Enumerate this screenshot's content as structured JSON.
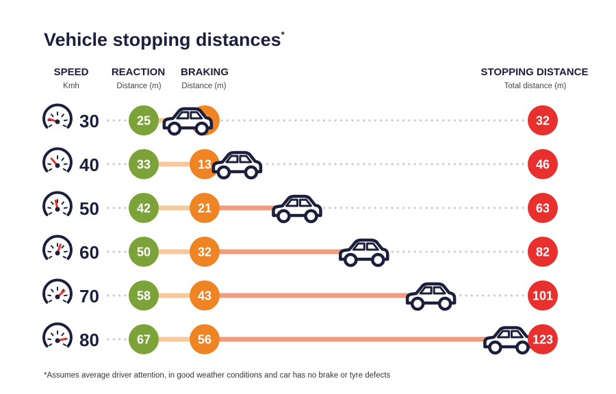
{
  "title": "Vehicle stopping distances",
  "title_mark": "*",
  "headers": {
    "speed": {
      "label": "SPEED",
      "sub": "Kmh"
    },
    "reaction": {
      "label": "REACTION",
      "sub": "Distance (m)"
    },
    "braking": {
      "label": "BRAKING",
      "sub": "Distance (m)"
    },
    "stopping": {
      "label": "STOPPING DISTANCE",
      "sub": "Total distance (m)"
    }
  },
  "footnote": "*Assumes average driver attention, in good weather conditions and car has no brake or tyre defects",
  "colors": {
    "reaction": "#7ba33a",
    "braking": "#ef8424",
    "stopping": "#e8302e",
    "bar_reaction": "#f6c99a",
    "bar_braking": "#f29b7e",
    "dots": "#cccccc",
    "ink": "#1b1f3b",
    "needle": "#e8302e"
  },
  "icons": {
    "gauge": "speedometer-icon",
    "car": "car-icon"
  },
  "chart_data": {
    "type": "bar",
    "categories": [
      "30",
      "40",
      "50",
      "60",
      "70",
      "80"
    ],
    "series": [
      {
        "name": "REACTION",
        "values": [
          25,
          33,
          42,
          50,
          58,
          67
        ]
      },
      {
        "name": "BRAKING",
        "values": [
          7,
          13,
          21,
          32,
          43,
          56
        ]
      },
      {
        "name": "STOPPING DISTANCE",
        "values": [
          32,
          46,
          63,
          82,
          101,
          123
        ]
      }
    ],
    "gauge_levels": [
      0.2,
      0.33,
      0.45,
      0.58,
      0.7,
      0.82
    ],
    "xlabel": "",
    "ylabel": "",
    "grid": false,
    "legend": "top"
  }
}
